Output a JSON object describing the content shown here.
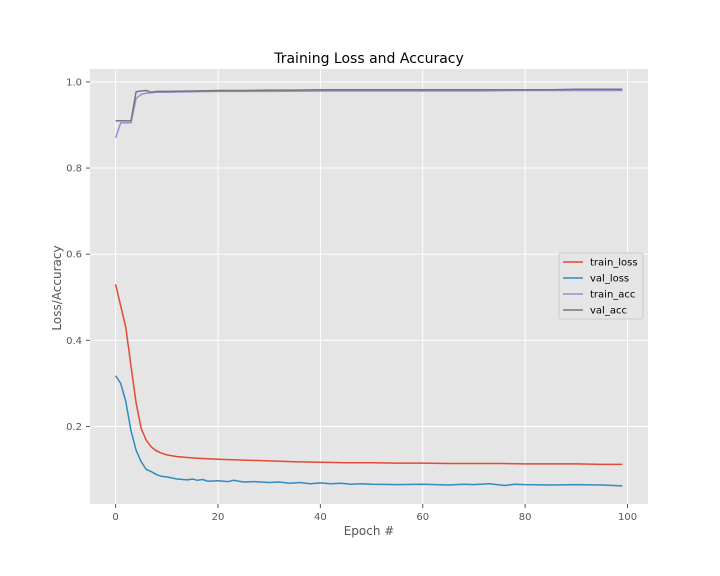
{
  "chart_data": {
    "type": "line",
    "title": "Training Loss and Accuracy",
    "xlabel": "Epoch #",
    "ylabel": "Loss/Accuracy",
    "xlim": [
      -5,
      104
    ],
    "ylim": [
      0.02,
      1.03
    ],
    "xticks": [
      0,
      20,
      40,
      60,
      80,
      100
    ],
    "yticks": [
      0.2,
      0.4,
      0.6,
      0.8,
      1.0
    ],
    "ytick_labels": [
      "0.2",
      "0.4",
      "0.6",
      "0.8",
      "1.0"
    ],
    "grid": true,
    "legend_position": "center-right",
    "series": [
      {
        "name": "train_loss",
        "color": "#E24A33",
        "x": [
          0,
          1,
          2,
          3,
          4,
          5,
          6,
          7,
          8,
          9,
          10,
          12,
          14,
          16,
          18,
          20,
          25,
          30,
          35,
          40,
          45,
          50,
          55,
          60,
          65,
          70,
          75,
          80,
          85,
          90,
          95,
          99
        ],
        "values": [
          0.53,
          0.48,
          0.43,
          0.34,
          0.255,
          0.195,
          0.168,
          0.152,
          0.143,
          0.138,
          0.134,
          0.13,
          0.128,
          0.126,
          0.125,
          0.124,
          0.122,
          0.12,
          0.118,
          0.117,
          0.116,
          0.116,
          0.115,
          0.115,
          0.114,
          0.114,
          0.114,
          0.113,
          0.113,
          0.113,
          0.112,
          0.112
        ]
      },
      {
        "name": "val_loss",
        "color": "#348ABD",
        "x": [
          0,
          1,
          2,
          3,
          4,
          5,
          6,
          7,
          8,
          9,
          10,
          12,
          14,
          15,
          16,
          17,
          18,
          20,
          22,
          23,
          25,
          27,
          30,
          32,
          34,
          36,
          38,
          40,
          42,
          44,
          46,
          48,
          50,
          55,
          60,
          65,
          68,
          70,
          73,
          76,
          78,
          80,
          85,
          90,
          95,
          99
        ],
        "values": [
          0.318,
          0.3,
          0.258,
          0.19,
          0.145,
          0.118,
          0.1,
          0.095,
          0.088,
          0.084,
          0.083,
          0.078,
          0.076,
          0.078,
          0.075,
          0.077,
          0.073,
          0.074,
          0.072,
          0.075,
          0.071,
          0.072,
          0.07,
          0.071,
          0.068,
          0.07,
          0.067,
          0.069,
          0.067,
          0.068,
          0.066,
          0.067,
          0.066,
          0.065,
          0.066,
          0.064,
          0.066,
          0.065,
          0.067,
          0.063,
          0.066,
          0.065,
          0.064,
          0.065,
          0.064,
          0.062
        ]
      },
      {
        "name": "train_acc",
        "color": "#988ED5",
        "x": [
          0,
          1,
          2,
          3,
          4,
          5,
          6,
          7,
          8,
          10,
          15,
          20,
          30,
          40,
          50,
          60,
          70,
          80,
          90,
          99
        ],
        "values": [
          0.87,
          0.905,
          0.905,
          0.905,
          0.962,
          0.971,
          0.974,
          0.975,
          0.976,
          0.976,
          0.977,
          0.978,
          0.978,
          0.979,
          0.979,
          0.979,
          0.979,
          0.98,
          0.98,
          0.98
        ]
      },
      {
        "name": "val_acc",
        "color": "#777777",
        "x": [
          0,
          1,
          2,
          3,
          4,
          5,
          6,
          7,
          8,
          10,
          15,
          20,
          25,
          30,
          35,
          40,
          45,
          50,
          55,
          60,
          65,
          70,
          75,
          80,
          85,
          90,
          95,
          99
        ],
        "values": [
          0.91,
          0.91,
          0.91,
          0.91,
          0.977,
          0.979,
          0.98,
          0.976,
          0.978,
          0.978,
          0.979,
          0.98,
          0.98,
          0.981,
          0.981,
          0.982,
          0.982,
          0.982,
          0.982,
          0.982,
          0.982,
          0.982,
          0.982,
          0.982,
          0.982,
          0.983,
          0.983,
          0.983
        ]
      }
    ]
  }
}
